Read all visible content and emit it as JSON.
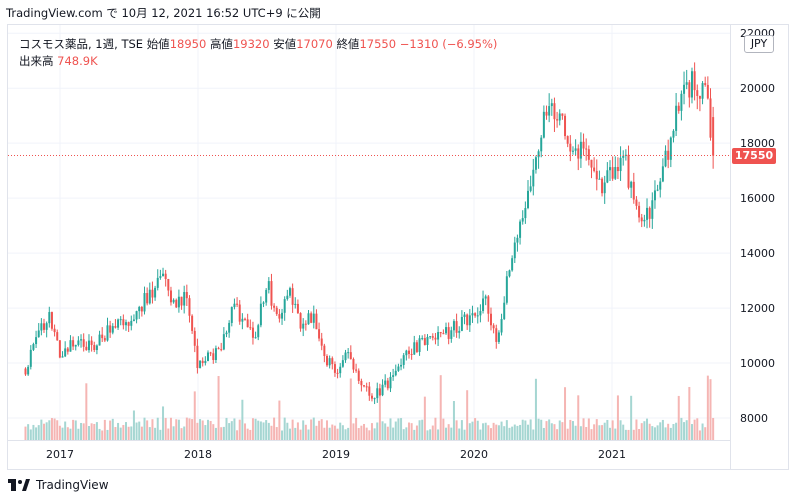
{
  "header": {
    "source_line": "TradingView.com で 10月 12, 2021 16:52 UTC+9 に公開"
  },
  "legend": {
    "symbol": "コスモス薬品, 1週, TSE",
    "open_label": "始値",
    "open": "18950",
    "high_label": "高値",
    "high": "19320",
    "low_label": "安値",
    "low": "17070",
    "close_label": "終値",
    "close": "17550",
    "change": "−1310 (−6.95%)",
    "volume_label": "出来高",
    "volume": "748.9K"
  },
  "currency_button": "JPY",
  "last_price_label": "17550",
  "footer": {
    "brand": "TradingView"
  },
  "colors": {
    "up": "#26a69a",
    "down": "#ef5350",
    "vol_up": "#a5d6d2",
    "vol_down": "#f5b5b3",
    "grid": "#f0f3fa"
  },
  "chart_data": {
    "type": "candlestick",
    "interval": "1 week",
    "y_ticks": [
      8000,
      10000,
      12000,
      14000,
      16000,
      18000,
      20000,
      22000
    ],
    "ylim": [
      7200,
      22300
    ],
    "x_ticks": [
      "2017",
      "2018",
      "2019",
      "2020",
      "2021"
    ],
    "last_price": 17550,
    "anchors": [
      [
        "2016-10",
        9800
      ],
      [
        "2016-11",
        10800
      ],
      [
        "2016-12",
        11800
      ],
      [
        "2017-01",
        10300
      ],
      [
        "2017-02",
        10600
      ],
      [
        "2017-04",
        10700
      ],
      [
        "2017-06",
        11500
      ],
      [
        "2017-07",
        11200
      ],
      [
        "2017-08",
        12100
      ],
      [
        "2017-09",
        12600
      ],
      [
        "2017-10",
        13000
      ],
      [
        "2017-11",
        12000
      ],
      [
        "2017-12",
        12500
      ],
      [
        "2018-01",
        9800
      ],
      [
        "2018-02",
        10200
      ],
      [
        "2018-03",
        10500
      ],
      [
        "2018-04",
        12200
      ],
      [
        "2018-05",
        11500
      ],
      [
        "2018-06",
        11000
      ],
      [
        "2018-07",
        12900
      ],
      [
        "2018-08",
        11600
      ],
      [
        "2018-09",
        12600
      ],
      [
        "2018-10",
        11200
      ],
      [
        "2018-11",
        11800
      ],
      [
        "2018-12",
        10300
      ],
      [
        "2019-01",
        9500
      ],
      [
        "2019-02",
        10500
      ],
      [
        "2019-03",
        9200
      ],
      [
        "2019-04",
        8800
      ],
      [
        "2019-05",
        9000
      ],
      [
        "2019-06",
        9500
      ],
      [
        "2019-07",
        10200
      ],
      [
        "2019-08",
        10600
      ],
      [
        "2019-09",
        10800
      ],
      [
        "2019-10",
        10900
      ],
      [
        "2019-11",
        11200
      ],
      [
        "2019-12",
        11500
      ],
      [
        "2020-01",
        11700
      ],
      [
        "2020-02",
        12200
      ],
      [
        "2020-03",
        10800
      ],
      [
        "2020-04",
        13500
      ],
      [
        "2020-05",
        15000
      ],
      [
        "2020-06",
        16800
      ],
      [
        "2020-07",
        18800
      ],
      [
        "2020-08",
        19300
      ],
      [
        "2020-09",
        18200
      ],
      [
        "2020-10",
        17800
      ],
      [
        "2020-11",
        17200
      ],
      [
        "2020-12",
        16400
      ],
      [
        "2021-01",
        16900
      ],
      [
        "2021-02",
        17600
      ],
      [
        "2021-03",
        15600
      ],
      [
        "2021-04",
        15400
      ],
      [
        "2021-05",
        16200
      ],
      [
        "2021-06",
        18000
      ],
      [
        "2021-07",
        19600
      ],
      [
        "2021-08",
        20300
      ],
      [
        "2021-09",
        20000
      ],
      [
        "2021-10",
        17550
      ]
    ],
    "volume_note": "weekly volume bars shown behind candles"
  }
}
